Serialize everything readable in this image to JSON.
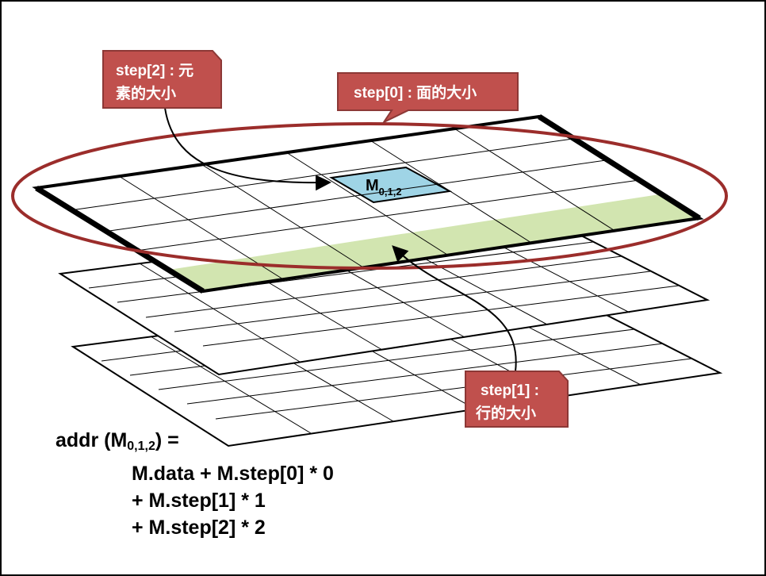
{
  "colors": {
    "callout_fill": "#c0504d",
    "callout_border": "#8c3836",
    "ellipse": "#9b2d2b",
    "row_highlight": "#d2e5b0",
    "element_highlight": "#9fd4e6",
    "grid_line": "#000000"
  },
  "callouts": {
    "step2": {
      "line1": "step[2] : 元",
      "line2": "素的大小"
    },
    "step0": {
      "text": "step[0] : 面的大小"
    },
    "step1": {
      "line1": "step[1] :",
      "line2": "行的大小"
    }
  },
  "element": {
    "base": "M",
    "sub": "0,1,2"
  },
  "formula": {
    "line1_prefix": "addr (M",
    "line1_sub": "0,1,2",
    "line1_suffix": ") =",
    "line2": "M.data + M.step[0] * 0",
    "line3": "+ M.step[1] * 1",
    "line4": "+ M.step[2] * 2"
  }
}
